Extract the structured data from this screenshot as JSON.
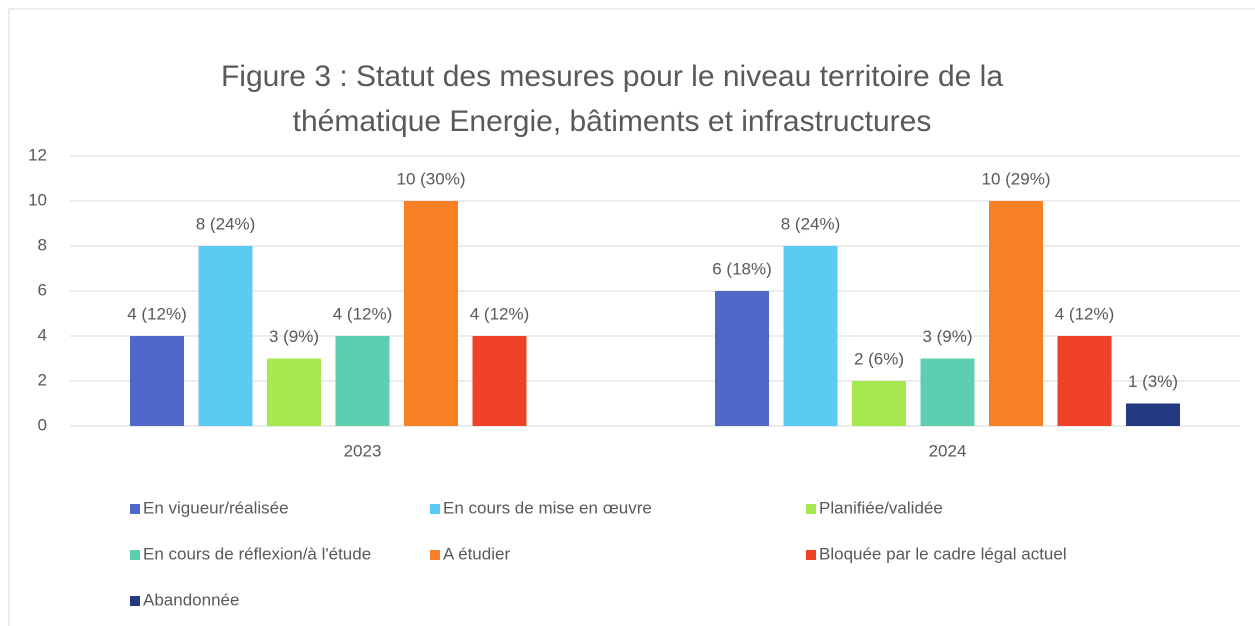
{
  "chart_data": {
    "type": "bar",
    "title": [
      "Figure 3 : Statut des mesures pour le niveau territoire de la",
      "thématique Energie, bâtiments et infrastructures"
    ],
    "categories": [
      "2023",
      "2024"
    ],
    "series": [
      {
        "name": "En vigueur/réalisée",
        "color": "#4f67c9",
        "values": [
          4,
          6
        ],
        "value_labels": [
          "4 (12%)",
          "6 (18%)"
        ]
      },
      {
        "name": "En cours de mise en œuvre",
        "color": "#5ccbf2",
        "values": [
          8,
          8
        ],
        "value_labels": [
          "8 (24%)",
          "8 (24%)"
        ]
      },
      {
        "name": "Planifiée/validée",
        "color": "#a6e850",
        "values": [
          3,
          2
        ],
        "value_labels": [
          "3 (9%)",
          "2 (6%)"
        ]
      },
      {
        "name": "En cours de réflexion/à l'étude",
        "color": "#5dcfb0",
        "values": [
          4,
          3
        ],
        "value_labels": [
          "4 (12%)",
          "3 (9%)"
        ]
      },
      {
        "name": "A étudier",
        "color": "#f97f24",
        "values": [
          10,
          10
        ],
        "value_labels": [
          "10 (30%)",
          "10 (29%)"
        ]
      },
      {
        "name": "Bloquée par le cadre légal actuel",
        "color": "#ee4128",
        "values": [
          4,
          4
        ],
        "value_labels": [
          "4 (12%)",
          "4 (12%)"
        ]
      },
      {
        "name": "Abandonnée",
        "color": "#243a80",
        "values": [
          null,
          1
        ],
        "value_labels": [
          null,
          "1 (3%)"
        ]
      }
    ],
    "ylim": [
      0,
      12
    ],
    "yticks": [
      0,
      2,
      4,
      6,
      8,
      10,
      12
    ],
    "grid": true,
    "legend": "bottom"
  }
}
